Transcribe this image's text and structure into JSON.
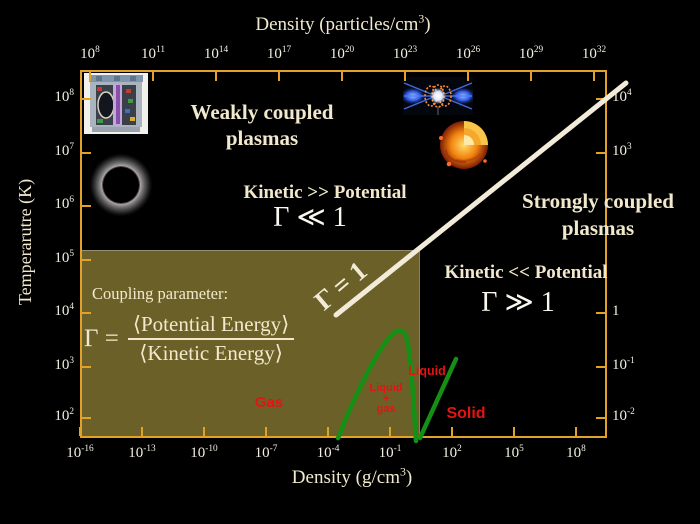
{
  "colors": {
    "frame": "#E2A227",
    "olive_panel": "#6B6128",
    "cream_text": "#F2E9CD",
    "tick_text": "#F3EFE2",
    "math_white": "#FAF7EF",
    "gamma_line": "#F3EBD9",
    "phase_curve_green": "#149114",
    "phase_label_red": "#E21414",
    "background": "#000000"
  },
  "axes": {
    "top": {
      "title": {
        "pre": "Density (particles/cm",
        "sup": "3",
        "post": ")"
      },
      "ticks": [
        {
          "b": "10",
          "e": "8"
        },
        {
          "b": "10",
          "e": "11"
        },
        {
          "b": "10",
          "e": "14"
        },
        {
          "b": "10",
          "e": "17"
        },
        {
          "b": "10",
          "e": "20"
        },
        {
          "b": "10",
          "e": "23"
        },
        {
          "b": "10",
          "e": "26"
        },
        {
          "b": "10",
          "e": "29"
        },
        {
          "b": "10",
          "e": "32"
        }
      ]
    },
    "bottom": {
      "title": {
        "pre": "Density (g/cm",
        "sup": "3",
        "post": ")"
      },
      "ticks": [
        {
          "b": "10",
          "e": "-16"
        },
        {
          "b": "10",
          "e": "-13"
        },
        {
          "b": "10",
          "e": "-10"
        },
        {
          "b": "10",
          "e": "-7"
        },
        {
          "b": "10",
          "e": "-4"
        },
        {
          "b": "10",
          "e": "-1"
        },
        {
          "b": "10",
          "e": "2"
        },
        {
          "b": "10",
          "e": "5"
        },
        {
          "b": "10",
          "e": "8"
        }
      ]
    },
    "left": {
      "title": "Temperarutre  (K)",
      "ticks": [
        {
          "b": "10",
          "e": "8"
        },
        {
          "b": "10",
          "e": "7"
        },
        {
          "b": "10",
          "e": "6"
        },
        {
          "b": "10",
          "e": "5"
        },
        {
          "b": "10",
          "e": "4"
        },
        {
          "b": "10",
          "e": "3"
        },
        {
          "b": "10",
          "e": "2"
        }
      ]
    },
    "right": {
      "ticks": [
        {
          "b": "10",
          "e": "4"
        },
        {
          "b": "10",
          "e": "3"
        },
        {
          "b": "1",
          "e": ""
        },
        {
          "b": "10",
          "e": "-1"
        },
        {
          "b": "10",
          "e": "-2"
        }
      ]
    }
  },
  "labels": {
    "weakly_line1": "Weakly coupled",
    "weakly_line2": "plasmas",
    "kinetic_gg": "Kinetic >> Potential",
    "gamma_ll": "Γ ≪ 1",
    "strongly_line1": "Strongly coupled",
    "strongly_line2": "plasmas",
    "kinetic_ll": "Kinetic << Potential",
    "gamma_gg": "Γ ≫ 1",
    "gamma_eq": "Γ = 1",
    "coupling_param": "Coupling parameter:",
    "gamma_def_lhs": "Γ =",
    "numerator": "⟨Potential Energy⟩",
    "denominator": "⟨Kinetic Energy⟩",
    "gas": "Gas",
    "liquid_gas_1": "Liquid",
    "liquid_gas_2": "+",
    "liquid_gas_3": "gas",
    "liquid": "Liquid",
    "solid": "Solid"
  },
  "images": [
    {
      "name": "tokamak-reactor-cutaway",
      "description": "cutaway illustration of a tokamak fusion reactor (top-left, weakly coupled regime)"
    },
    {
      "name": "solar-eclipse-corona",
      "description": "total solar eclipse showing white corona around black disk"
    },
    {
      "name": "z-pinch-plasma",
      "description": "z-pinch / dense plasma experiment with blue converging jets and orange rings"
    },
    {
      "name": "sun-interior-cutaway",
      "description": "the Sun with a cutaway wedge showing interior layers"
    }
  ],
  "chart_data": {
    "type": "line",
    "title": "Plasma coupling regimes: temperature versus density (log-log)",
    "x_axis_bottom": {
      "label": "Density (g/cm3)",
      "scale": "log",
      "tick_values": [
        1e-16,
        1e-13,
        1e-10,
        1e-07,
        0.0001,
        0.1,
        100.0,
        100000.0,
        100000000.0
      ]
    },
    "x_axis_top": {
      "label": "Density (particles/cm3)",
      "scale": "log",
      "tick_values": [
        100000000.0,
        100000000000.0,
        100000000000000.0,
        1e+17,
        1e+20,
        1e+23,
        1e+26,
        1e+29,
        1e+32
      ]
    },
    "y_axis_left": {
      "label": "Temperarutre (K)",
      "scale": "log",
      "tick_values": [
        100000000.0,
        10000000.0,
        1000000.0,
        100000.0,
        10000.0,
        1000.0,
        100.0
      ]
    },
    "y_axis_right": {
      "label": "",
      "scale": "log",
      "tick_values": [
        10000.0,
        1000.0,
        1,
        0.1,
        0.01
      ]
    },
    "grid": false,
    "series": [
      {
        "name": "Gamma = 1 boundary line",
        "color": "#F3EBD9",
        "points_density_temperature": [
          [
            0.0003,
            9000
          ],
          [
            20000000000.0,
            200000000.0
          ]
        ]
      },
      {
        "name": "gas-liquid-solid phase boundary",
        "color": "#149114",
        "points_density_temperature": [
          [
            0.0003,
            42
          ],
          [
            0.24,
            4900
          ],
          [
            1.8,
            35
          ],
          [
            3.2,
            42
          ],
          [
            170,
            1300
          ]
        ]
      }
    ],
    "regions": [
      {
        "label": "Weakly coupled plasmas",
        "condition": "Kinetic >> Potential, Γ ≪ 1",
        "location": "upper-left of Γ=1 line"
      },
      {
        "label": "Strongly coupled plasmas",
        "condition": "Kinetic << Potential, Γ ≫ 1",
        "location": "lower-right of Γ=1 line"
      }
    ],
    "annotations": [
      "Γ = 1",
      "Coupling parameter: Γ = ⟨Potential Energy⟩ / ⟨Kinetic Energy⟩",
      "Gas",
      "Liquid + gas",
      "Liquid",
      "Solid"
    ]
  }
}
